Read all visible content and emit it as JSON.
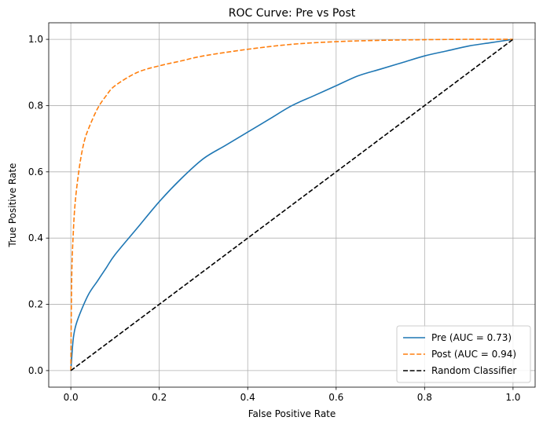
{
  "chart_data": {
    "type": "line",
    "title": "ROC Curve: Pre vs Post",
    "xlabel": "False Positive Rate",
    "ylabel": "True Positive Rate",
    "xlim": [
      -0.05,
      1.05
    ],
    "ylim": [
      -0.05,
      1.05
    ],
    "xticks": [
      0.0,
      0.2,
      0.4,
      0.6,
      0.8,
      1.0
    ],
    "yticks": [
      0.0,
      0.2,
      0.4,
      0.6,
      0.8,
      1.0
    ],
    "xtick_labels": [
      "0.0",
      "0.2",
      "0.4",
      "0.6",
      "0.8",
      "1.0"
    ],
    "ytick_labels": [
      "0.0",
      "0.2",
      "0.4",
      "0.6",
      "0.8",
      "1.0"
    ],
    "grid": true,
    "legend_position": "lower-right",
    "series": [
      {
        "name": "Pre (AUC = 0.73)",
        "color": "#1f77b4",
        "dash": "solid",
        "x": [
          0.0,
          0.005,
          0.01,
          0.02,
          0.04,
          0.06,
          0.08,
          0.1,
          0.15,
          0.2,
          0.25,
          0.3,
          0.35,
          0.4,
          0.45,
          0.5,
          0.55,
          0.6,
          0.65,
          0.7,
          0.75,
          0.8,
          0.85,
          0.9,
          0.95,
          1.0
        ],
        "y": [
          0.0,
          0.09,
          0.13,
          0.17,
          0.23,
          0.27,
          0.31,
          0.35,
          0.43,
          0.51,
          0.58,
          0.64,
          0.68,
          0.72,
          0.76,
          0.8,
          0.83,
          0.86,
          0.89,
          0.91,
          0.93,
          0.95,
          0.965,
          0.98,
          0.99,
          1.0
        ]
      },
      {
        "name": "Post (AUC = 0.94)",
        "color": "#ff7f0e",
        "dash": "dashed",
        "x": [
          0.0,
          0.002,
          0.005,
          0.01,
          0.02,
          0.03,
          0.04,
          0.06,
          0.08,
          0.1,
          0.15,
          0.2,
          0.25,
          0.3,
          0.4,
          0.5,
          0.6,
          0.7,
          0.8,
          0.9,
          1.0
        ],
        "y": [
          0.0,
          0.28,
          0.4,
          0.51,
          0.62,
          0.69,
          0.73,
          0.79,
          0.83,
          0.86,
          0.9,
          0.92,
          0.935,
          0.95,
          0.97,
          0.985,
          0.993,
          0.997,
          0.999,
          1.0,
          1.0
        ]
      },
      {
        "name": "Random Classifier",
        "color": "#000000",
        "dash": "dashed",
        "x": [
          0.0,
          1.0
        ],
        "y": [
          0.0,
          1.0
        ]
      }
    ]
  }
}
